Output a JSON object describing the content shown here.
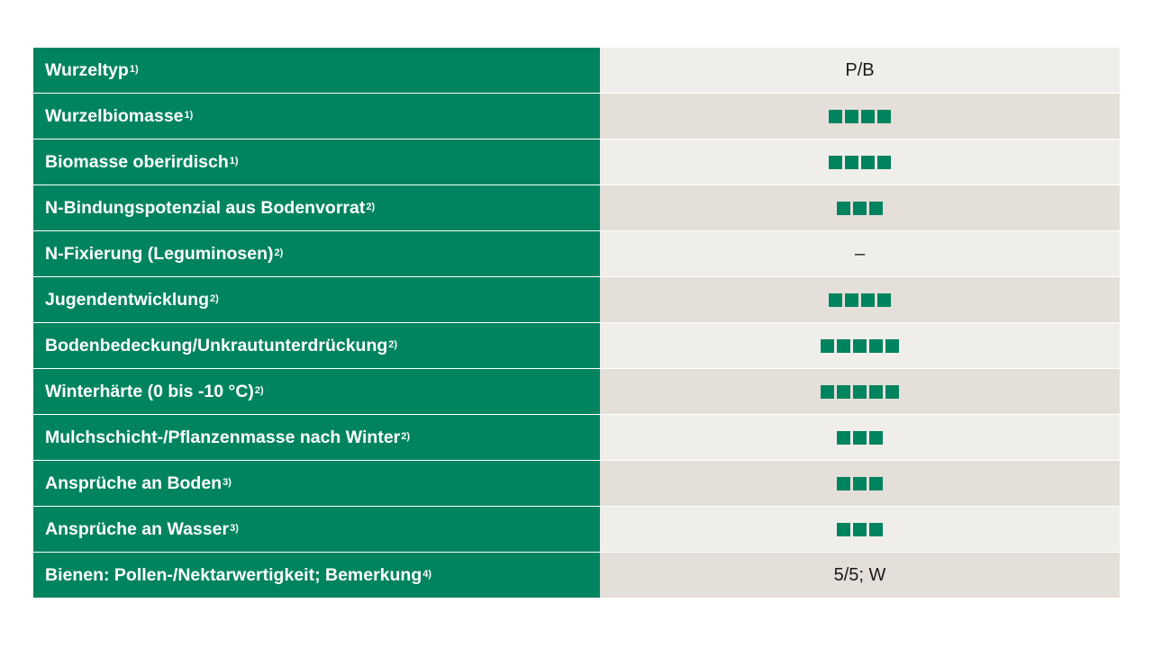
{
  "colors": {
    "green": "#00845f",
    "row_light": "#f0eeea",
    "row_dark": "#e4dfd8"
  },
  "rows": [
    {
      "label": "Wurzeltyp",
      "note": "1)",
      "value_text": "P/B",
      "rating": 0
    },
    {
      "label": "Wurzelbiomasse",
      "note": "1)",
      "value_text": "",
      "rating": 4
    },
    {
      "label": "Biomasse oberirdisch",
      "note": "1)",
      "value_text": "",
      "rating": 4
    },
    {
      "label": "N-Bindungspotenzial aus Bodenvorrat",
      "note": "2)",
      "value_text": "",
      "rating": 3
    },
    {
      "label": "N-Fixierung (Leguminosen)",
      "note": "2)",
      "value_text": "–",
      "rating": 0
    },
    {
      "label": "Jugendentwicklung",
      "note": "2)",
      "value_text": "",
      "rating": 4
    },
    {
      "label": "Bodenbedeckung/Unkrautunterdrückung",
      "note": "2)",
      "value_text": "",
      "rating": 5
    },
    {
      "label": "Winterhärte (0 bis -10 °C)",
      "note": "2)",
      "value_text": "",
      "rating": 5
    },
    {
      "label": "Mulchschicht-/Pflanzenmasse nach Winter",
      "note": "2)",
      "value_text": "",
      "rating": 3
    },
    {
      "label": "Ansprüche an Boden",
      "note": "3)",
      "value_text": "",
      "rating": 3
    },
    {
      "label": "Ansprüche an Wasser",
      "note": "3)",
      "value_text": "",
      "rating": 3
    },
    {
      "label": "Bienen: Pollen-/Nektarwertigkeit; Bemerkung",
      "note": "4)",
      "value_text": "5/5; W",
      "rating": 0
    }
  ]
}
